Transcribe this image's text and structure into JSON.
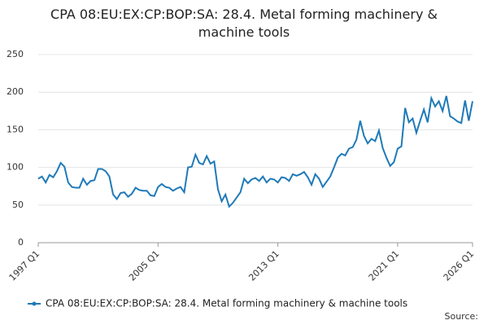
{
  "chart_data": {
    "type": "line",
    "title": "CPA 08:EU:EX:CP:BOP:SA: 28.4. Metal forming machinery & machine tools",
    "source": "Source:",
    "categories": [
      "1997 Q1",
      null,
      null,
      null,
      null,
      null,
      null,
      null,
      null,
      null,
      null,
      null,
      null,
      null,
      null,
      null,
      null,
      null,
      null,
      null,
      null,
      null,
      null,
      null,
      null,
      null,
      null,
      null,
      null,
      null,
      null,
      null,
      "2005 Q1",
      null,
      null,
      null,
      null,
      null,
      null,
      null,
      null,
      null,
      null,
      null,
      null,
      null,
      null,
      null,
      null,
      null,
      null,
      null,
      null,
      null,
      null,
      null,
      null,
      null,
      null,
      null,
      null,
      null,
      null,
      null,
      "2013 Q1",
      null,
      null,
      null,
      null,
      null,
      null,
      null,
      null,
      null,
      null,
      null,
      null,
      null,
      null,
      null,
      null,
      null,
      null,
      null,
      null,
      null,
      null,
      null,
      null,
      null,
      null,
      null,
      null,
      null,
      null,
      null,
      "2021 Q1",
      null,
      null,
      null,
      null,
      null,
      null,
      null,
      null,
      null,
      null,
      null,
      null,
      null,
      null,
      null,
      null,
      null,
      null,
      null,
      "2026 Q1"
    ],
    "series": [
      {
        "name": "CPA 08:EU:EX:CP:BOP:SA: 28.4. Metal forming machinery & machine tools",
        "color": "#1f7ab8",
        "values": [
          85,
          88,
          80,
          90,
          87,
          95,
          106,
          101,
          80,
          74,
          73,
          73,
          85,
          77,
          82,
          83,
          98,
          98,
          95,
          88,
          64,
          58,
          66,
          67,
          61,
          65,
          73,
          70,
          69,
          69,
          63,
          62,
          74,
          78,
          74,
          73,
          69,
          72,
          74,
          67,
          100,
          101,
          117,
          106,
          104,
          115,
          105,
          108,
          71,
          55,
          64,
          48,
          53,
          60,
          67,
          85,
          79,
          84,
          86,
          82,
          88,
          80,
          85,
          84,
          80,
          87,
          86,
          82,
          91,
          89,
          91,
          94,
          87,
          77,
          91,
          85,
          74,
          81,
          88,
          100,
          113,
          118,
          116,
          125,
          127,
          137,
          162,
          142,
          132,
          138,
          135,
          149,
          126,
          113,
          102,
          107,
          125,
          128,
          179,
          160,
          165,
          146,
          162,
          177,
          160,
          192,
          181,
          188,
          175,
          195,
          168,
          165,
          161,
          159,
          189,
          162,
          188
        ]
      }
    ],
    "ylim": [
      0,
      250
    ],
    "yticks": [
      0,
      50,
      100,
      150,
      200,
      250
    ],
    "grid": true
  }
}
